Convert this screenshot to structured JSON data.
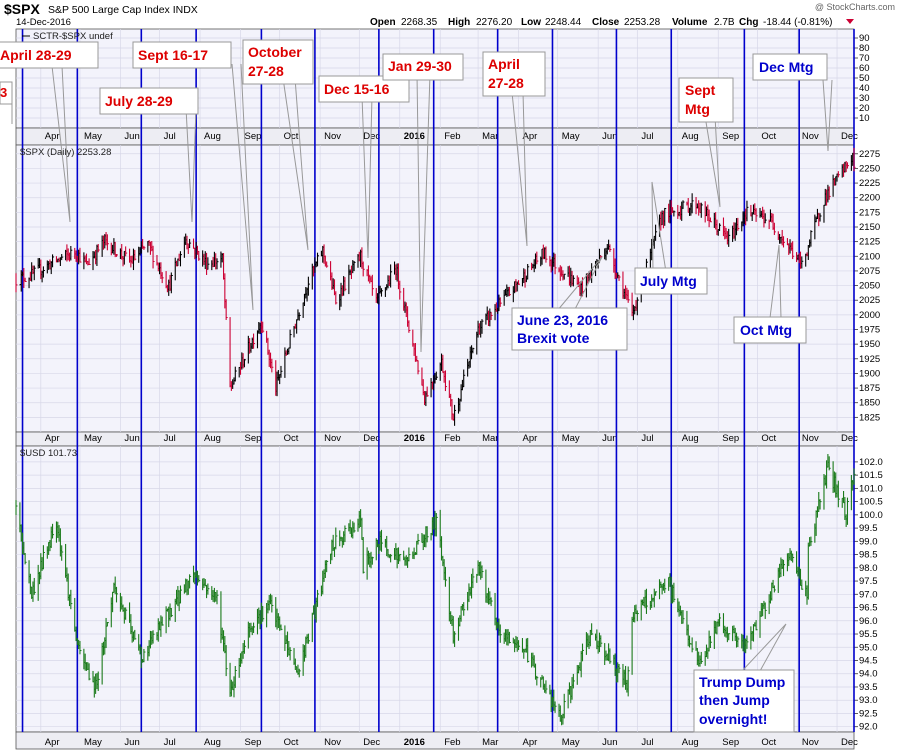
{
  "header": {
    "symbol": "$SPX",
    "description": "S&P 500 Large Cap Index INDX",
    "date": "14-Dec-2016",
    "open_label": "Open",
    "open": "2268.35",
    "high_label": "High",
    "high": "2276.20",
    "low_label": "Low",
    "low": "2248.44",
    "close_label": "Close",
    "close": "2253.28",
    "volume_label": "Volume",
    "volume": "2.7B",
    "chg_label": "Chg",
    "chg": "-18.44 (-0.81%)",
    "watermark": "@ StockCharts.com"
  },
  "colors": {
    "up": "#000000",
    "down": "#cc0033",
    "usd": "#1a7a1a",
    "fed_line": "#0000cc",
    "grid": "#d7d7e8",
    "panel_bg": "#f3f3fb",
    "band_bg": "#ededf3",
    "event_text": "#dd0000",
    "fed_text": "#0000cc"
  },
  "chart_data": [
    {
      "type": "line",
      "title": "SCTR-$SPX undef",
      "ylim": [
        0,
        99
      ],
      "yticks": [
        10,
        20,
        30,
        40,
        50,
        60,
        70,
        80,
        90
      ],
      "series": []
    },
    {
      "type": "candlestick",
      "title": "$SPX (Daily) 2253.28",
      "ylim": [
        1800,
        2290
      ],
      "yticks": [
        1825,
        1850,
        1875,
        1900,
        1925,
        1950,
        1975,
        2000,
        2025,
        2050,
        2075,
        2100,
        2125,
        2150,
        2175,
        2200,
        2225,
        2250,
        2275
      ],
      "x_start": "2015-03-13",
      "x_end": "2016-12-14",
      "anchors": [
        [
          "2015-03-13",
          2060
        ],
        [
          "2015-03-25",
          2068
        ],
        [
          "2015-04-09",
          2088
        ],
        [
          "2015-04-20",
          2100
        ],
        [
          "2015-04-28",
          2108
        ],
        [
          "2015-05-06",
          2085
        ],
        [
          "2015-05-20",
          2126
        ],
        [
          "2015-06-09",
          2090
        ],
        [
          "2015-06-22",
          2120
        ],
        [
          "2015-07-08",
          2048
        ],
        [
          "2015-07-21",
          2130
        ],
        [
          "2015-08-06",
          2088
        ],
        [
          "2015-08-18",
          2095
        ],
        [
          "2015-08-24",
          1875
        ],
        [
          "2015-09-17",
          1990
        ],
        [
          "2015-09-28",
          1875
        ],
        [
          "2015-10-22",
          2052
        ],
        [
          "2015-11-03",
          2110
        ],
        [
          "2015-11-13",
          2025
        ],
        [
          "2015-12-02",
          2100
        ],
        [
          "2015-12-14",
          2020
        ],
        [
          "2015-12-29",
          2080
        ],
        [
          "2016-01-20",
          1860
        ],
        [
          "2016-02-02",
          1920
        ],
        [
          "2016-02-11",
          1825
        ],
        [
          "2016-03-01",
          1975
        ],
        [
          "2016-04-20",
          2105
        ],
        [
          "2016-05-19",
          2045
        ],
        [
          "2016-06-08",
          2118
        ],
        [
          "2016-06-27",
          2000
        ],
        [
          "2016-07-20",
          2170
        ],
        [
          "2016-08-15",
          2190
        ],
        [
          "2016-09-09",
          2128
        ],
        [
          "2016-09-22",
          2175
        ],
        [
          "2016-10-10",
          2163
        ],
        [
          "2016-11-04",
          2085
        ],
        [
          "2016-11-21",
          2198
        ],
        [
          "2016-12-13",
          2271
        ],
        [
          "2016-12-14",
          2253
        ]
      ]
    },
    {
      "type": "bar",
      "title": "$USD 101.73",
      "ylim": [
        91.8,
        102.6
      ],
      "yticks": [
        92.0,
        92.5,
        93.0,
        93.5,
        94.0,
        94.5,
        95.0,
        95.5,
        96.0,
        96.5,
        97.0,
        97.5,
        98.0,
        98.5,
        99.0,
        99.5,
        100.0,
        100.5,
        101.0,
        101.5,
        102.0
      ],
      "anchors": [
        [
          "2015-03-13",
          100.2
        ],
        [
          "2015-03-25",
          97.0
        ],
        [
          "2015-04-13",
          99.8
        ],
        [
          "2015-04-30",
          94.8
        ],
        [
          "2015-05-13",
          93.5
        ],
        [
          "2015-05-27",
          97.3
        ],
        [
          "2015-06-17",
          94.6
        ],
        [
          "2015-07-08",
          96.3
        ],
        [
          "2015-07-27",
          97.8
        ],
        [
          "2015-08-14",
          96.8
        ],
        [
          "2015-08-24",
          93.3
        ],
        [
          "2015-09-08",
          95.8
        ],
        [
          "2015-09-24",
          96.6
        ],
        [
          "2015-10-15",
          94.0
        ],
        [
          "2015-11-10",
          98.8
        ],
        [
          "2015-12-02",
          99.8
        ],
        [
          "2015-12-04",
          98.0
        ],
        [
          "2015-12-17",
          99.0
        ],
        [
          "2016-01-05",
          98.2
        ],
        [
          "2016-01-29",
          99.8
        ],
        [
          "2016-02-11",
          95.5
        ],
        [
          "2016-03-01",
          98.1
        ],
        [
          "2016-03-17",
          95.5
        ],
        [
          "2016-04-05",
          95.0
        ],
        [
          "2016-05-03",
          92.3
        ],
        [
          "2016-05-27",
          95.6
        ],
        [
          "2016-06-23",
          93.6
        ],
        [
          "2016-06-27",
          96.2
        ],
        [
          "2016-07-25",
          97.4
        ],
        [
          "2016-08-18",
          94.3
        ],
        [
          "2016-09-01",
          96.0
        ],
        [
          "2016-09-22",
          95.0
        ],
        [
          "2016-10-25",
          98.6
        ],
        [
          "2016-11-08",
          97.0
        ],
        [
          "2016-11-09",
          98.7
        ],
        [
          "2016-11-24",
          101.8
        ],
        [
          "2016-12-08",
          100.0
        ],
        [
          "2016-12-14",
          101.7
        ]
      ]
    }
  ],
  "x_axis": {
    "months": [
      [
        "2015-04-01",
        "Apr"
      ],
      [
        "2015-05-01",
        "May"
      ],
      [
        "2015-06-01",
        "Jun"
      ],
      [
        "2015-07-01",
        "Jul"
      ],
      [
        "2015-08-01",
        "Aug"
      ],
      [
        "2015-09-01",
        "Sep"
      ],
      [
        "2015-10-01",
        "Oct"
      ],
      [
        "2015-11-01",
        "Nov"
      ],
      [
        "2015-12-01",
        "Dec"
      ],
      [
        "2016-01-01",
        "2016"
      ],
      [
        "2016-02-01",
        "Feb"
      ],
      [
        "2016-03-01",
        "Mar"
      ],
      [
        "2016-04-01",
        "Apr"
      ],
      [
        "2016-05-01",
        "May"
      ],
      [
        "2016-06-01",
        "Jun"
      ],
      [
        "2016-07-01",
        "Jul"
      ],
      [
        "2016-08-01",
        "Aug"
      ],
      [
        "2016-09-01",
        "Sep"
      ],
      [
        "2016-10-01",
        "Oct"
      ],
      [
        "2016-11-01",
        "Nov"
      ],
      [
        "2016-12-01",
        "Dec"
      ]
    ]
  },
  "fed_meetings": [
    "2015-03-18",
    "2015-04-29",
    "2015-06-17",
    "2015-07-29",
    "2015-09-17",
    "2015-10-28",
    "2015-12-16",
    "2016-01-27",
    "2016-03-16",
    "2016-04-27",
    "2016-06-15",
    "2016-07-27",
    "2016-09-21",
    "2016-11-02",
    "2016-12-14"
  ],
  "annotations": {
    "april_2829": "April 28-29",
    "july_2829": "July 28-29",
    "sept_1617": "Sept 16-17",
    "oct_2728_a": "October",
    "oct_2728_b": "27-28",
    "dec_1516": "Dec 15-16",
    "jan_2930": "Jan 29-30",
    "apr_2728_a": "April",
    "apr_2728_b": "27-28",
    "sept_mtg_a": "Sept",
    "sept_mtg_b": "Mtg",
    "dec_mtg": "Dec Mtg",
    "july_mtg": "July Mtg",
    "oct_mtg": "Oct Mtg",
    "brexit_a": "June 23, 2016",
    "brexit_b": "Brexit vote",
    "trump_a": "Trump Dump",
    "trump_b": "then Jump",
    "trump_c": "overnight!"
  }
}
